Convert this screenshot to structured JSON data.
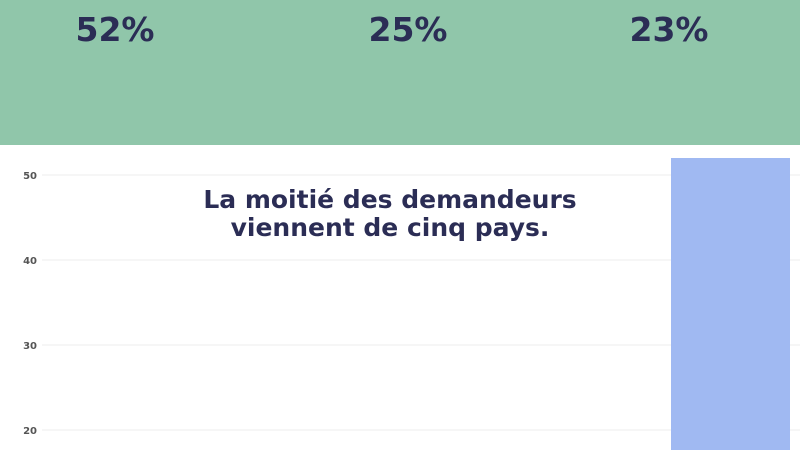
{
  "header": {
    "percentages": [
      "52%",
      "25%",
      "23%"
    ],
    "band_color": "#90c6aa"
  },
  "chart_data": {
    "type": "bar",
    "title": "La moitié des demandeurs viennent de cinq pays.",
    "categories": [
      ""
    ],
    "values": [
      52
    ],
    "yticks": [
      20,
      30,
      40,
      50
    ],
    "ylim": [
      17,
      55
    ],
    "grid": true,
    "bar_color": "#a0b9f2"
  }
}
